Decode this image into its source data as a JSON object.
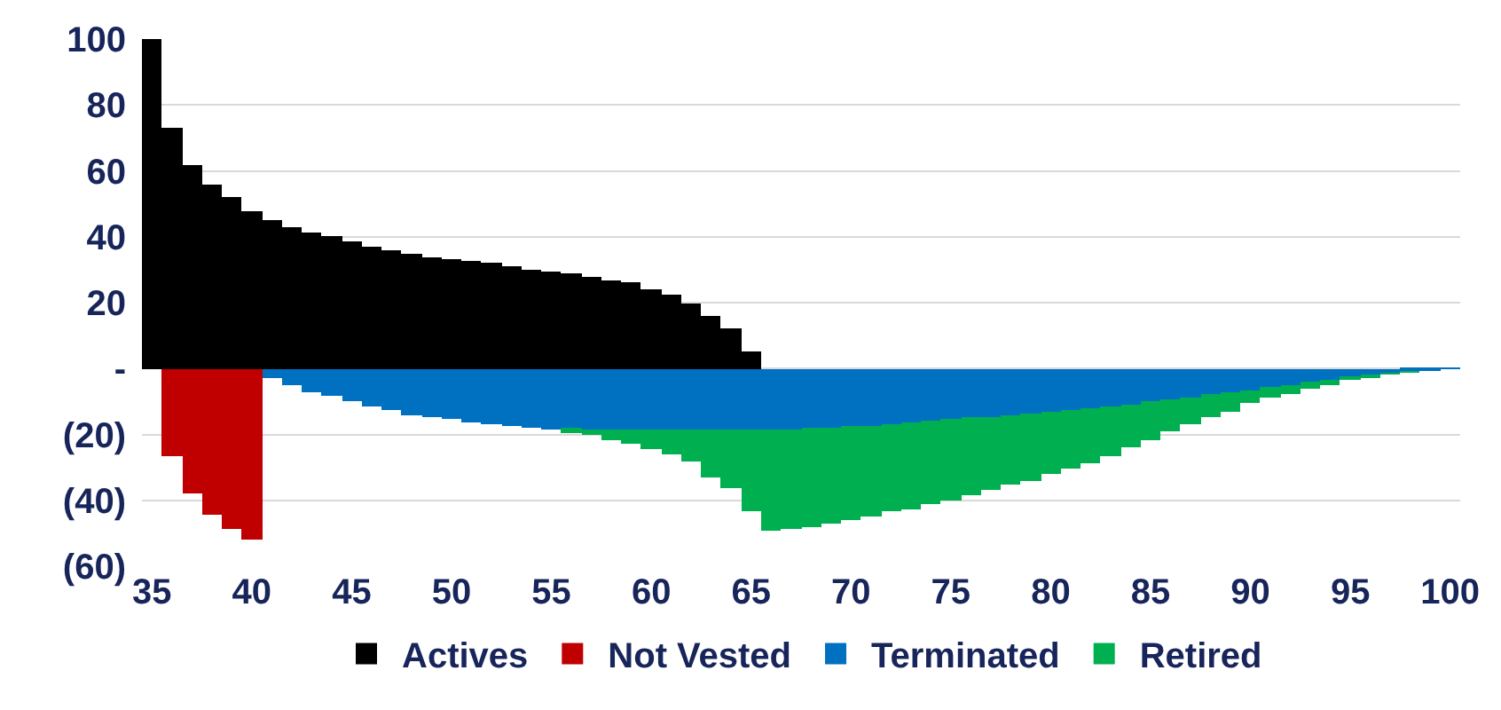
{
  "chart_data": {
    "type": "bar",
    "stacked": true,
    "x": [
      35,
      36,
      37,
      38,
      39,
      40,
      41,
      42,
      43,
      44,
      45,
      46,
      47,
      48,
      49,
      50,
      51,
      52,
      53,
      54,
      55,
      56,
      57,
      58,
      59,
      60,
      61,
      62,
      63,
      64,
      65,
      66,
      67,
      68,
      69,
      70,
      71,
      72,
      73,
      74,
      75,
      76,
      77,
      78,
      79,
      80,
      81,
      82,
      83,
      84,
      85,
      86,
      87,
      88,
      89,
      90,
      91,
      92,
      93,
      94,
      95,
      96,
      97,
      98,
      99,
      100
    ],
    "series": [
      {
        "name": "Actives",
        "color": "#000000",
        "values": [
          100,
          73,
          62,
          56,
          52,
          48,
          45,
          43,
          41.5,
          40,
          38.5,
          37,
          36,
          35,
          34,
          33,
          32.5,
          32,
          31,
          30,
          29.5,
          29,
          28,
          27,
          26,
          24,
          22.5,
          20,
          16,
          12,
          5,
          null,
          null,
          null,
          null,
          null,
          null,
          null,
          null,
          null,
          null,
          null,
          null,
          null,
          null,
          null,
          null,
          null,
          null,
          null,
          null,
          null,
          null,
          null,
          null,
          null,
          null,
          null,
          null,
          null,
          null,
          null,
          null,
          null,
          null,
          null
        ]
      },
      {
        "name": "Not Vested",
        "color": "#c00000",
        "values": [
          null,
          -26.5,
          -38,
          -44.5,
          -48.5,
          -52,
          null,
          null,
          null,
          null,
          null,
          null,
          null,
          null,
          null,
          null,
          null,
          null,
          null,
          null,
          null,
          null,
          null,
          null,
          null,
          null,
          null,
          null,
          null,
          null,
          null,
          null,
          null,
          null,
          null,
          null,
          null,
          null,
          null,
          null,
          null,
          null,
          null,
          null,
          null,
          null,
          null,
          null,
          null,
          null,
          null,
          null,
          null,
          null,
          null,
          null,
          null,
          null,
          null,
          null,
          null,
          null,
          null,
          null,
          null,
          null
        ]
      },
      {
        "name": "Terminated",
        "color": "#0070c0",
        "values": [
          null,
          null,
          null,
          null,
          null,
          null,
          -3,
          -5,
          -7,
          -8.5,
          -10,
          -11.5,
          -12.5,
          -14,
          -14.5,
          -15.5,
          -16.5,
          -17,
          -17.5,
          -18,
          -18.5,
          -18.5,
          -18.5,
          -18.5,
          -18.5,
          -18.5,
          -18.5,
          -18.5,
          -18.5,
          -18.5,
          -18.5,
          -18.5,
          -18.5,
          -18,
          -18,
          -17.5,
          -17.5,
          -17,
          -16.5,
          -16,
          -15.5,
          -15,
          -14.5,
          -14,
          -13.5,
          -13,
          -12.5,
          -12,
          -11.5,
          -11,
          -10,
          -9.5,
          -9,
          -8,
          -7,
          -6.5,
          -5.5,
          -5,
          -4,
          -3.5,
          -2.5,
          -2,
          -1.5,
          -1,
          -0.5,
          -0.2
        ]
      },
      {
        "name": "Retired",
        "color": "#00b050",
        "values": [
          null,
          null,
          null,
          null,
          null,
          null,
          null,
          null,
          null,
          null,
          null,
          null,
          null,
          null,
          null,
          null,
          null,
          null,
          null,
          null,
          null,
          -1,
          -1.5,
          -3,
          -4.5,
          -6,
          -7.5,
          -9.5,
          -14.5,
          -18,
          -25,
          -30.5,
          -30,
          -30,
          -29,
          -28.5,
          -27.5,
          -26.5,
          -26,
          -25,
          -24.5,
          -23.5,
          -22.5,
          -21,
          -20.5,
          -19,
          -18,
          -16.5,
          -15,
          -13,
          -11.5,
          -9.5,
          -8,
          -7,
          -6,
          -4,
          -3.5,
          -2.5,
          -2,
          -1.5,
          -1,
          -0.5,
          -0.3,
          -0.1,
          null,
          null
        ]
      }
    ],
    "xlim": [
      34.5,
      100.5
    ],
    "xticks": [
      35,
      40,
      45,
      50,
      55,
      60,
      65,
      70,
      75,
      80,
      85,
      90,
      95,
      100
    ],
    "ylim": [
      -60,
      100
    ],
    "yticks": [
      100,
      80,
      60,
      40,
      20,
      {
        "value": 0,
        "label": "-"
      },
      {
        "value": -20,
        "label": "(20)"
      },
      {
        "value": -40,
        "label": "(40)"
      },
      {
        "value": -60,
        "label": "(60)"
      }
    ],
    "grid": "y",
    "legend": "bottom"
  }
}
